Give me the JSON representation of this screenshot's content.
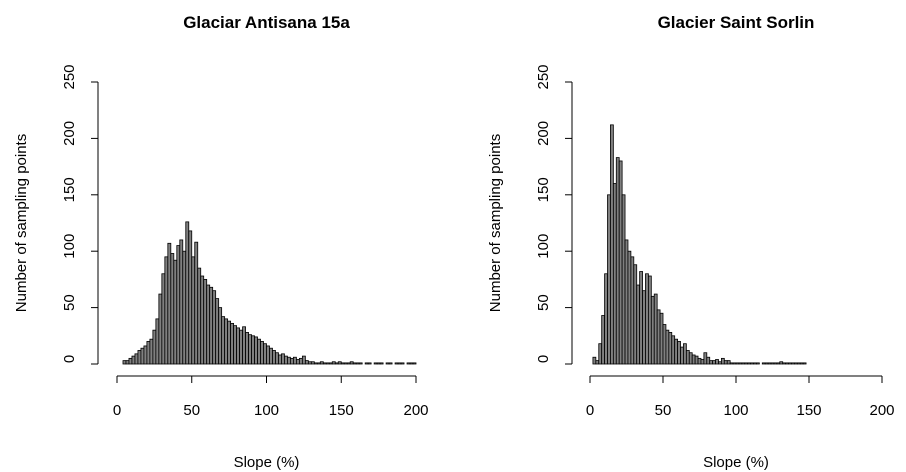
{
  "chart_data": [
    {
      "type": "histogram",
      "title": "Glaciar Antisana 15a",
      "x_label": "Slope (%)",
      "y_label": "Number of sampling points",
      "bins": [
        4,
        6,
        8,
        10,
        12,
        14,
        16,
        18,
        20,
        22,
        24,
        26,
        28,
        30,
        32,
        34,
        36,
        38,
        40,
        42,
        44,
        46,
        48,
        50,
        52,
        54,
        56,
        58,
        60,
        62,
        64,
        66,
        68,
        70,
        72,
        74,
        76,
        78,
        80,
        82,
        84,
        86,
        88,
        90,
        92,
        94,
        96,
        98,
        100,
        102,
        104,
        106,
        108,
        110,
        112,
        114,
        116,
        118,
        120,
        122,
        124,
        126,
        128,
        130,
        132,
        134,
        136,
        138,
        140,
        142,
        144,
        146,
        148,
        150,
        152,
        154,
        156,
        158,
        160,
        162,
        164,
        166,
        168,
        170,
        172,
        174,
        176,
        178,
        180,
        182,
        184,
        186,
        188,
        190,
        192,
        194,
        196,
        198,
        200
      ],
      "values": [
        3,
        3,
        5,
        7,
        9,
        12,
        14,
        16,
        20,
        22,
        30,
        40,
        62,
        80,
        95,
        107,
        98,
        92,
        105,
        110,
        100,
        126,
        118,
        95,
        108,
        85,
        78,
        75,
        70,
        68,
        65,
        58,
        50,
        42,
        40,
        38,
        36,
        34,
        32,
        30,
        33,
        28,
        26,
        25,
        24,
        22,
        20,
        18,
        16,
        14,
        12,
        10,
        8,
        9,
        7,
        6,
        5,
        6,
        4,
        5,
        7,
        3,
        2,
        2,
        1,
        1,
        2,
        1,
        1,
        1,
        2,
        1,
        2,
        1,
        1,
        1,
        2,
        1,
        1,
        1,
        0,
        1,
        1,
        0,
        1,
        1,
        1,
        0,
        1,
        1,
        0,
        1,
        1,
        1,
        0,
        1,
        1,
        1
      ],
      "color": "#808080",
      "xlim": [
        0,
        200
      ],
      "xticks": [
        0,
        50,
        100,
        150,
        200
      ],
      "ylim": [
        0,
        250
      ],
      "yticks": [
        0,
        50,
        100,
        150,
        200,
        250
      ]
    },
    {
      "type": "histogram",
      "title": "Glacier Saint Sorlin",
      "x_label": "Slope (%)",
      "y_label": "Number of sampling points",
      "bins": [
        2,
        4,
        6,
        8,
        10,
        12,
        14,
        16,
        18,
        20,
        22,
        24,
        26,
        28,
        30,
        32,
        34,
        36,
        38,
        40,
        42,
        44,
        46,
        48,
        50,
        52,
        54,
        56,
        58,
        60,
        62,
        64,
        66,
        68,
        70,
        72,
        74,
        76,
        78,
        80,
        82,
        84,
        86,
        88,
        90,
        92,
        94,
        96,
        98,
        100,
        102,
        104,
        106,
        108,
        110,
        112,
        114,
        116,
        118,
        120,
        122,
        124,
        126,
        128,
        130,
        132,
        134,
        136,
        138,
        140,
        142,
        144,
        146,
        148
      ],
      "values": [
        6,
        3,
        18,
        43,
        80,
        150,
        212,
        160,
        183,
        180,
        150,
        110,
        100,
        95,
        88,
        70,
        82,
        65,
        80,
        78,
        60,
        62,
        48,
        45,
        35,
        30,
        28,
        25,
        22,
        20,
        15,
        18,
        12,
        10,
        8,
        7,
        5,
        4,
        10,
        6,
        3,
        3,
        4,
        2,
        5,
        3,
        3,
        1,
        1,
        1,
        1,
        1,
        1,
        1,
        1,
        1,
        1,
        0,
        1,
        1,
        1,
        1,
        1,
        1,
        2,
        1,
        1,
        1,
        1,
        1,
        1,
        1,
        1
      ],
      "color": "#808080",
      "xlim": [
        0,
        200
      ],
      "xticks": [
        0,
        50,
        100,
        150,
        200
      ],
      "ylim": [
        0,
        250
      ],
      "yticks": [
        0,
        50,
        100,
        150,
        200,
        250
      ]
    }
  ]
}
